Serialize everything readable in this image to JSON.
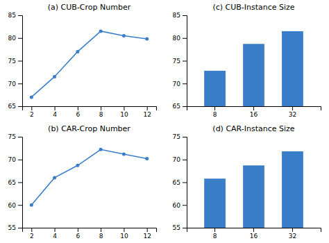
{
  "chart_data": [
    {
      "type": "line",
      "title": "(a) CUB-Crop Number",
      "x": [
        2,
        4,
        6,
        8,
        10,
        12
      ],
      "values": [
        67.0,
        71.5,
        77.0,
        81.5,
        80.5,
        79.8
      ],
      "color": "#3a7dc9",
      "marker": "circle",
      "xlim": [
        1.2,
        12.8
      ],
      "xticks": [
        2,
        4,
        6,
        8,
        10,
        12
      ],
      "ylim": [
        65,
        85
      ],
      "yticks": [
        65,
        70,
        75,
        80,
        85
      ]
    },
    {
      "type": "line",
      "title": "(b) CAR-Crop Number",
      "x": [
        2,
        4,
        6,
        8,
        10,
        12
      ],
      "values": [
        60.0,
        66.0,
        68.7,
        72.2,
        71.2,
        70.2
      ],
      "color": "#3a7dc9",
      "marker": "circle",
      "xlim": [
        1.2,
        12.8
      ],
      "xticks": [
        2,
        4,
        6,
        8,
        10,
        12
      ],
      "ylim": [
        55,
        75
      ],
      "yticks": [
        55,
        60,
        65,
        70,
        75
      ]
    },
    {
      "type": "bar",
      "title": "(c) CUB-Instance Size",
      "categories": [
        "8",
        "16",
        "32"
      ],
      "values": [
        72.8,
        78.7,
        81.5
      ],
      "color": "#3a7dc9",
      "ylim": [
        65,
        85
      ],
      "yticks": [
        65,
        70,
        75,
        80,
        85
      ]
    },
    {
      "type": "bar",
      "title": "(d) CAR-Instance Size",
      "categories": [
        "8",
        "16",
        "32"
      ],
      "values": [
        65.8,
        68.7,
        71.8
      ],
      "color": "#3a7dc9",
      "ylim": [
        55,
        75
      ],
      "yticks": [
        55,
        60,
        65,
        70,
        75
      ]
    }
  ]
}
